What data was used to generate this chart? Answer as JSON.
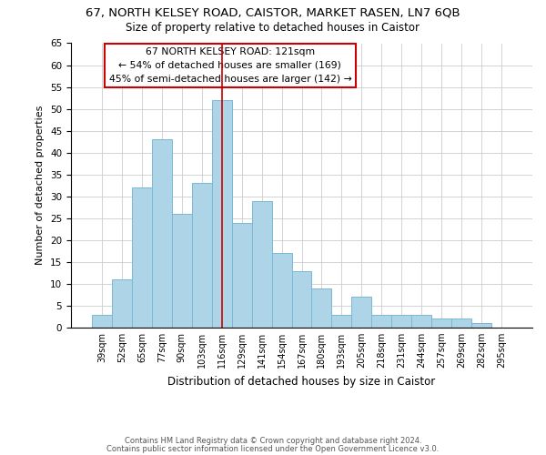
{
  "title": "67, NORTH KELSEY ROAD, CAISTOR, MARKET RASEN, LN7 6QB",
  "subtitle": "Size of property relative to detached houses in Caistor",
  "xlabel": "Distribution of detached houses by size in Caistor",
  "ylabel": "Number of detached properties",
  "bar_labels": [
    "39sqm",
    "52sqm",
    "65sqm",
    "77sqm",
    "90sqm",
    "103sqm",
    "116sqm",
    "129sqm",
    "141sqm",
    "154sqm",
    "167sqm",
    "180sqm",
    "193sqm",
    "205sqm",
    "218sqm",
    "231sqm",
    "244sqm",
    "257sqm",
    "269sqm",
    "282sqm",
    "295sqm"
  ],
  "bar_values": [
    3,
    11,
    32,
    43,
    26,
    33,
    52,
    24,
    29,
    17,
    13,
    9,
    3,
    7,
    3,
    3,
    3,
    2,
    2,
    1,
    0
  ],
  "bar_color": "#aed4e8",
  "bar_edge_color": "#7ab8d4",
  "vline_x": 6,
  "vline_color": "#cc0000",
  "annotation_line1": "67 NORTH KELSEY ROAD: 121sqm",
  "annotation_line2": "← 54% of detached houses are smaller (169)",
  "annotation_line3": "45% of semi-detached houses are larger (142) →",
  "annotation_box_color": "#ffffff",
  "annotation_box_edge_color": "#cc0000",
  "ylim": [
    0,
    65
  ],
  "yticks": [
    0,
    5,
    10,
    15,
    20,
    25,
    30,
    35,
    40,
    45,
    50,
    55,
    60,
    65
  ],
  "footer_line1": "Contains HM Land Registry data © Crown copyright and database right 2024.",
  "footer_line2": "Contains public sector information licensed under the Open Government Licence v3.0.",
  "bg_color": "#ffffff",
  "grid_color": "#cccccc"
}
